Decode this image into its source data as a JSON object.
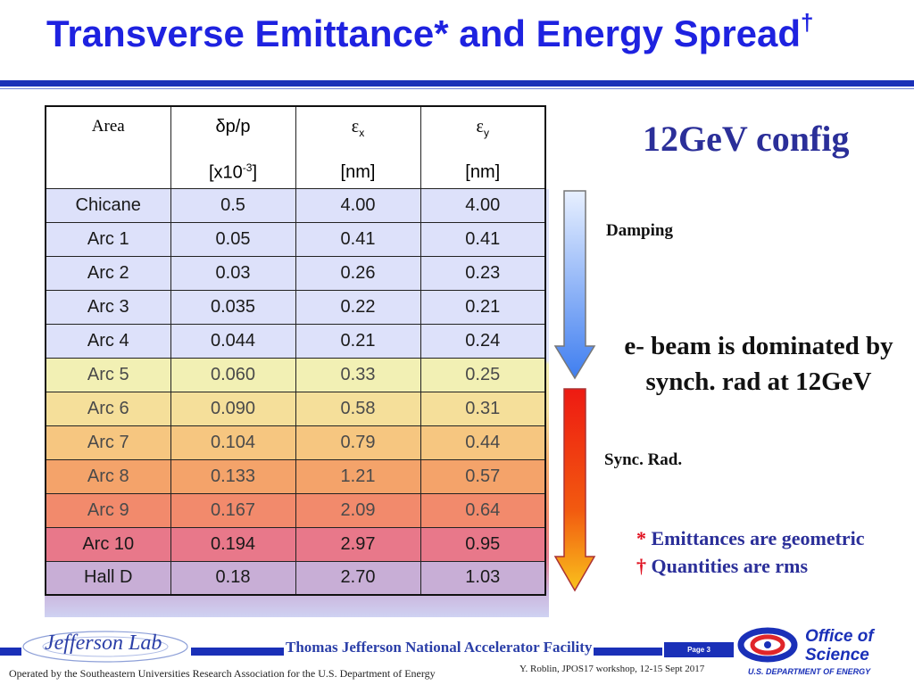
{
  "title": {
    "main": "Transverse Emittance",
    "star": "*",
    "middle": " and Energy Spread",
    "dagger": "†"
  },
  "table": {
    "headers": {
      "area": "Area",
      "dpp_top": "δp/p",
      "dpp_unit_pre": "[x10",
      "dpp_unit_exp": "-3",
      "dpp_unit_post": "]",
      "ex_symbol": "ε",
      "ex_sub": "x",
      "ex_unit": "[nm]",
      "ey_symbol": "ε",
      "ey_sub": "y",
      "ey_unit": "[nm]"
    },
    "rows": [
      {
        "area": "Chicane",
        "dpp": "0.5",
        "ex": "4.00",
        "ey": "4.00"
      },
      {
        "area": "Arc 1",
        "dpp": "0.05",
        "ex": "0.41",
        "ey": "0.41"
      },
      {
        "area": "Arc 2",
        "dpp": "0.03",
        "ex": "0.26",
        "ey": "0.23"
      },
      {
        "area": "Arc 3",
        "dpp": "0.035",
        "ex": "0.22",
        "ey": "0.21"
      },
      {
        "area": "Arc 4",
        "dpp": "0.044",
        "ex": "0.21",
        "ey": "0.24"
      },
      {
        "area": "Arc 5",
        "dpp": "0.060",
        "ex": "0.33",
        "ey": "0.25"
      },
      {
        "area": "Arc 6",
        "dpp": "0.090",
        "ex": "0.58",
        "ey": "0.31"
      },
      {
        "area": "Arc 7",
        "dpp": "0.104",
        "ex": "0.79",
        "ey": "0.44"
      },
      {
        "area": "Arc 8",
        "dpp": "0.133",
        "ex": "1.21",
        "ey": "0.57"
      },
      {
        "area": "Arc 9",
        "dpp": "0.167",
        "ex": "2.09",
        "ey": "0.64"
      },
      {
        "area": "Arc 10",
        "dpp": "0.194",
        "ex": "2.97",
        "ey": "0.95"
      },
      {
        "area": "Hall D",
        "dpp": "0.18",
        "ex": "2.70",
        "ey": "1.03"
      }
    ],
    "row_colors": [
      "#1a1a1a",
      "#1a1a1a",
      "#1a1a1a",
      "#1a1a1a",
      "#1a1a1a",
      "#4a4a4a",
      "#4a4a4a",
      "#4a4a4a",
      "#4a4a4a",
      "#4a4a4a",
      "#1a1a1a",
      "#1a1a1a"
    ],
    "row_bgs": [
      "#dde1fa",
      "#dde1fa",
      "#dde1fa",
      "#dde1fa",
      "#dde1fa",
      "#f2f0b4",
      "#f5df9a",
      "#f6c680",
      "#f4a36a",
      "#f28a6c",
      "#e8788a",
      "#c8aed6"
    ]
  },
  "config_label": "12GeV config",
  "damping_label": "Damping",
  "sync_rad_label": "Sync. Rad.",
  "dominated_text": "e- beam is dominated by synch. rad at 12GeV",
  "notes": [
    {
      "marker": "*",
      "text": " Emittances are geometric"
    },
    {
      "marker": "†",
      "text": " Quantities are rms"
    }
  ],
  "footer": {
    "jlab_logo_text": "Jefferson Lab",
    "facility": "Thomas Jefferson National Accelerator Facility",
    "page": "Page 3",
    "operated_by": "Operated by the Southeastern Universities Research Association for the U.S. Department of  Energy",
    "workshop": "Y. Roblin, JPOS17 workshop, 12-15 Sept 2017",
    "office_line1": "Office of",
    "office_line2": "Science",
    "doe": "U.S. DEPARTMENT OF ENERGY"
  },
  "colors": {
    "title_blue": "#1e22e0",
    "accent_blue": "#1a30b8",
    "text_blue": "#2b2f99",
    "star_red": "#e0101f"
  }
}
